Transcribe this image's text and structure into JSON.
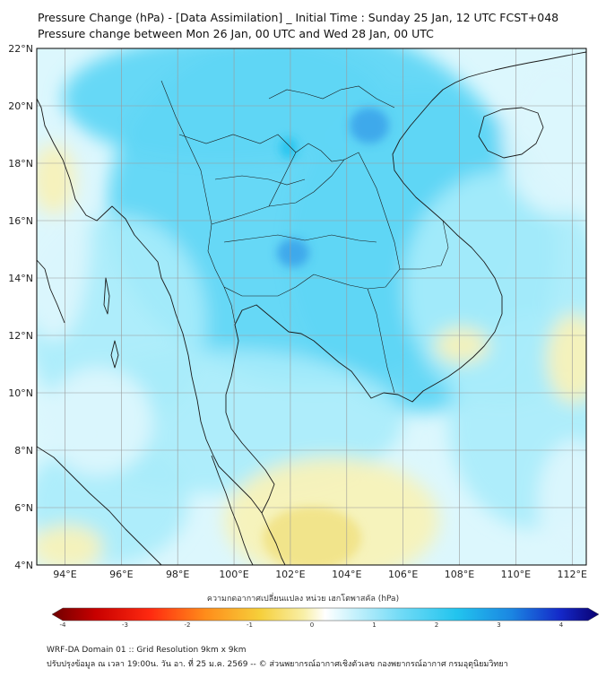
{
  "header": {
    "title": "Pressure Change (hPa) - [Data Assimilation] _ Initial Time : Sunday 25 Jan, 12 UTC FCST+048",
    "subtitle": "Pressure change between Mon 26 Jan, 00 UTC and Wed 28 Jan, 00 UTC"
  },
  "map": {
    "lat_range": [
      4,
      22
    ],
    "lon_range": [
      93,
      112.5
    ],
    "lat_ticks": [
      "22°N",
      "20°N",
      "18°N",
      "16°N",
      "14°N",
      "12°N",
      "10°N",
      "8°N",
      "6°N",
      "4°N"
    ],
    "lon_ticks": [
      "94°E",
      "96°E",
      "98°E",
      "100°E",
      "102°E",
      "104°E",
      "106°E",
      "108°E",
      "110°E",
      "112°E"
    ],
    "gridlines": true,
    "field_colors": {
      "deep_cyan": "#22c4ee",
      "cyan": "#5fd6f5",
      "light_cyan": "#a8ecfb",
      "pale": "#dcf7fd",
      "pale_yellow": "#f8f2b8",
      "yellow": "#f0e07e",
      "blue_max": "#3aa4ea"
    }
  },
  "colorbar": {
    "title": "ความกดอากาศเปลี่ยนแปลง หน่วย เฮกโตพาสคัล (hPa)",
    "range": [
      -4,
      4
    ],
    "ticks": [
      "-4",
      "-3",
      "-2",
      "-1",
      "0",
      "1",
      "2",
      "3",
      "4"
    ]
  },
  "footer": {
    "line1": "WRF-DA Domain 01 :: Grid Resolution 9km x 9km",
    "line2": "ปรับปรุงข้อมูล ณ เวลา 19:00น. วัน อา. ที่ 25 ม.ค. 2569 -- © ส่วนพยากรณ์อากาศเชิงตัวเลข กองพยากรณ์อากาศ กรมอุตุนิยมวิทยา"
  }
}
